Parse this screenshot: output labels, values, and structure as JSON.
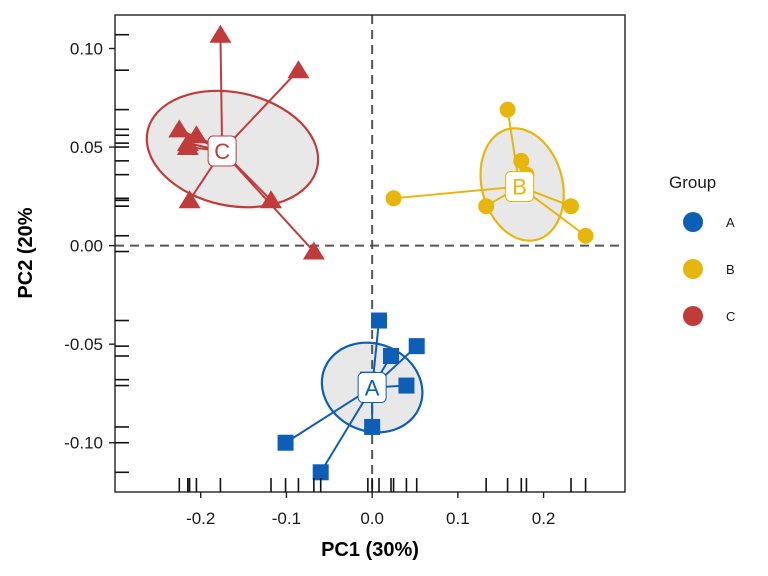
{
  "chart_data": {
    "type": "scatter",
    "xlabel": "PC1 (30%)",
    "ylabel": "PC2 (20%",
    "xlim": [
      -0.3,
      0.295
    ],
    "ylim": [
      -0.125,
      0.117
    ],
    "x_ticks": [
      -0.2,
      -0.1,
      0.0,
      0.1,
      0.2
    ],
    "x_tick_labels": [
      "-0.2",
      "-0.1",
      "0.0",
      "0.1",
      "0.2"
    ],
    "y_ticks": [
      0.1,
      0.05,
      0.0,
      -0.05,
      -0.1
    ],
    "y_tick_labels": [
      "0.10",
      "0.05",
      "0.00",
      "-0.05",
      "-0.10"
    ],
    "reference_lines": {
      "x": 0,
      "y": 0,
      "style": "dashed"
    },
    "grid": false,
    "legend": {
      "title": "Group",
      "placement": "right",
      "entries": [
        "A",
        "B",
        "C"
      ]
    },
    "series": [
      {
        "name": "A",
        "color": "#0c5eb7",
        "marker": "square",
        "centroid": {
          "x": 0.0,
          "y": -0.072,
          "label": "A"
        },
        "ellipse": {
          "cx": 0.0,
          "cy": -0.072,
          "rx": 0.051,
          "ry": 0.026,
          "angle_deg": -68
        },
        "points": [
          {
            "x": 0.008,
            "y": -0.038
          },
          {
            "x": 0.052,
            "y": -0.051
          },
          {
            "x": 0.022,
            "y": -0.056
          },
          {
            "x": -0.005,
            "y": -0.068
          },
          {
            "x": 0.04,
            "y": -0.071
          },
          {
            "x": 0.0,
            "y": -0.092
          },
          {
            "x": -0.101,
            "y": -0.1
          },
          {
            "x": -0.06,
            "y": -0.115
          }
        ]
      },
      {
        "name": "B",
        "color": "#e7b60d",
        "marker": "circle",
        "centroid": {
          "x": 0.172,
          "y": 0.03,
          "label": "B"
        },
        "ellipse": {
          "cx": 0.175,
          "cy": 0.031,
          "rx": 0.047,
          "ry": 0.029,
          "angle_deg": -15
        },
        "points": [
          {
            "x": 0.158,
            "y": 0.069
          },
          {
            "x": 0.174,
            "y": 0.043
          },
          {
            "x": 0.18,
            "y": 0.036
          },
          {
            "x": 0.025,
            "y": 0.024
          },
          {
            "x": 0.133,
            "y": 0.02
          },
          {
            "x": 0.232,
            "y": 0.02
          },
          {
            "x": 0.249,
            "y": 0.005
          }
        ]
      },
      {
        "name": "C",
        "color": "#c23b3b",
        "marker": "triangle",
        "centroid": {
          "x": -0.175,
          "y": 0.048,
          "label": "C"
        },
        "ellipse": {
          "cx": -0.163,
          "cy": 0.049,
          "rx": 0.066,
          "ry": 0.044,
          "angle_deg": -78
        },
        "points": [
          {
            "x": -0.177,
            "y": 0.107
          },
          {
            "x": -0.086,
            "y": 0.089
          },
          {
            "x": -0.225,
            "y": 0.059
          },
          {
            "x": -0.205,
            "y": 0.056
          },
          {
            "x": -0.215,
            "y": 0.052
          },
          {
            "x": -0.215,
            "y": 0.05
          },
          {
            "x": -0.213,
            "y": 0.023
          },
          {
            "x": -0.118,
            "y": 0.023
          },
          {
            "x": -0.068,
            "y": -0.003
          }
        ]
      }
    ]
  }
}
